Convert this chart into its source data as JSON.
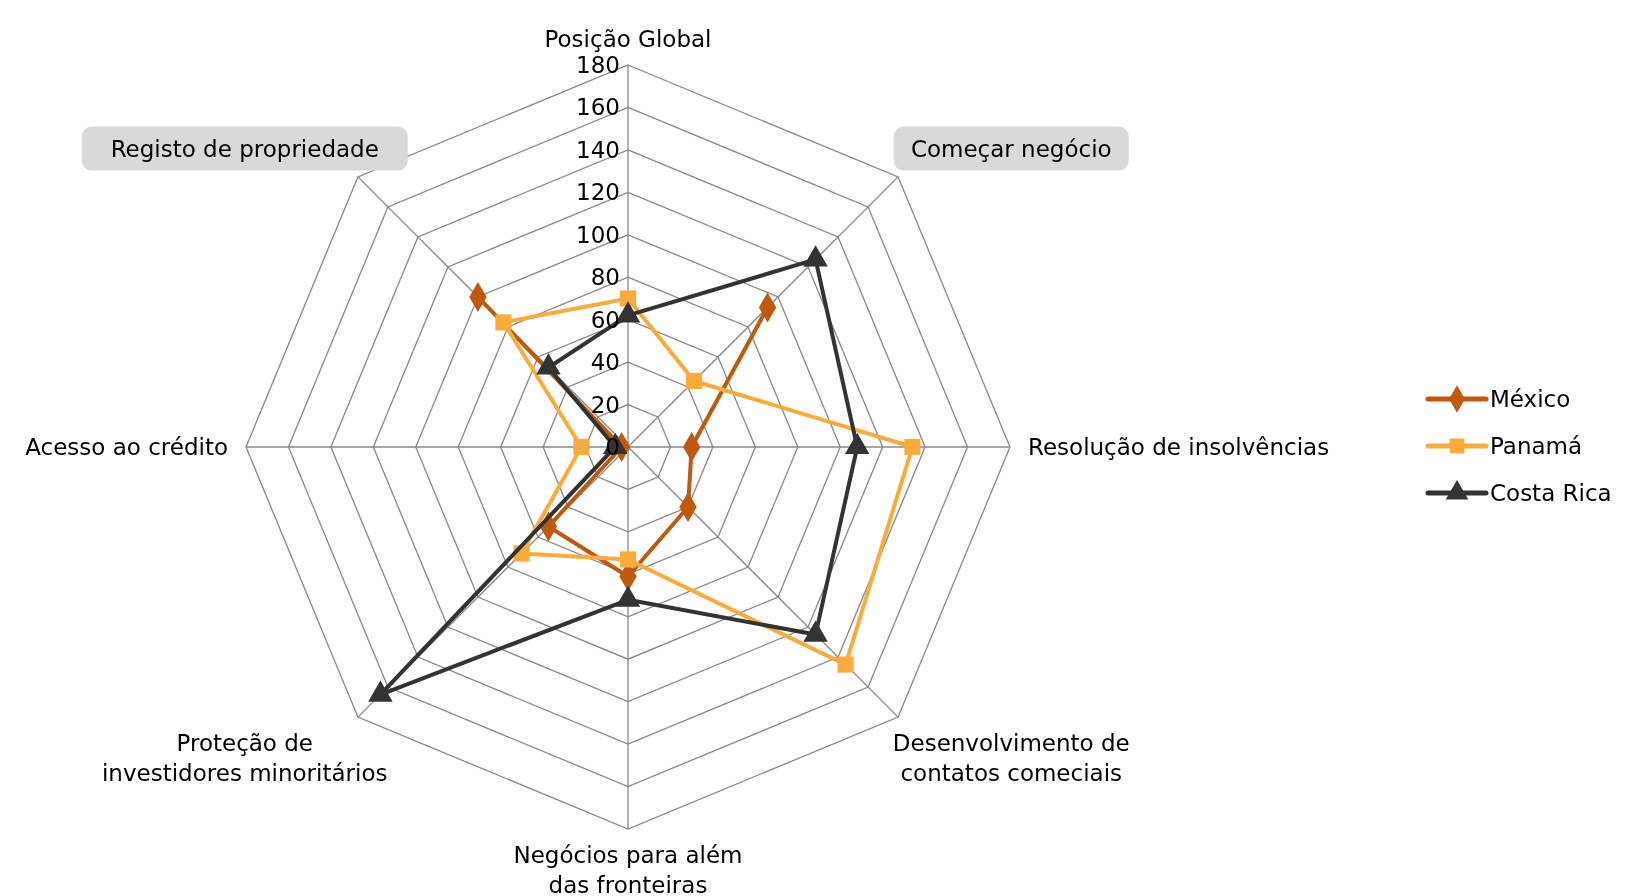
{
  "chart_data": {
    "type": "radar",
    "categories": [
      "Posição Global",
      "Começar negócio",
      "Resolução de insolvências",
      "Desenvolvimento de contatos comeciais",
      "Negócios para além das fronteiras",
      "Proteção de investidores minoritários",
      "Acesso ao crédito",
      "Registo de propriedade"
    ],
    "series": [
      {
        "name": "México",
        "color": "#c0580f",
        "marker": "diamond",
        "values": [
          null,
          93,
          30,
          40,
          61,
          53,
          3,
          100
        ]
      },
      {
        "name": "Panamá",
        "color": "#f9ac3c",
        "marker": "square",
        "values": [
          70,
          44,
          134,
          145,
          53,
          71,
          22,
          83
        ]
      },
      {
        "name": "Costa Rica",
        "color": "#333333",
        "marker": "triangle",
        "values": [
          62,
          125,
          108,
          125,
          72,
          165,
          6,
          53
        ]
      }
    ],
    "ylim": [
      0,
      180
    ],
    "yticks": [
      0,
      20,
      40,
      60,
      80,
      100,
      120,
      140,
      160,
      180
    ],
    "grid": true,
    "legend": "right",
    "line_style": "solid"
  }
}
